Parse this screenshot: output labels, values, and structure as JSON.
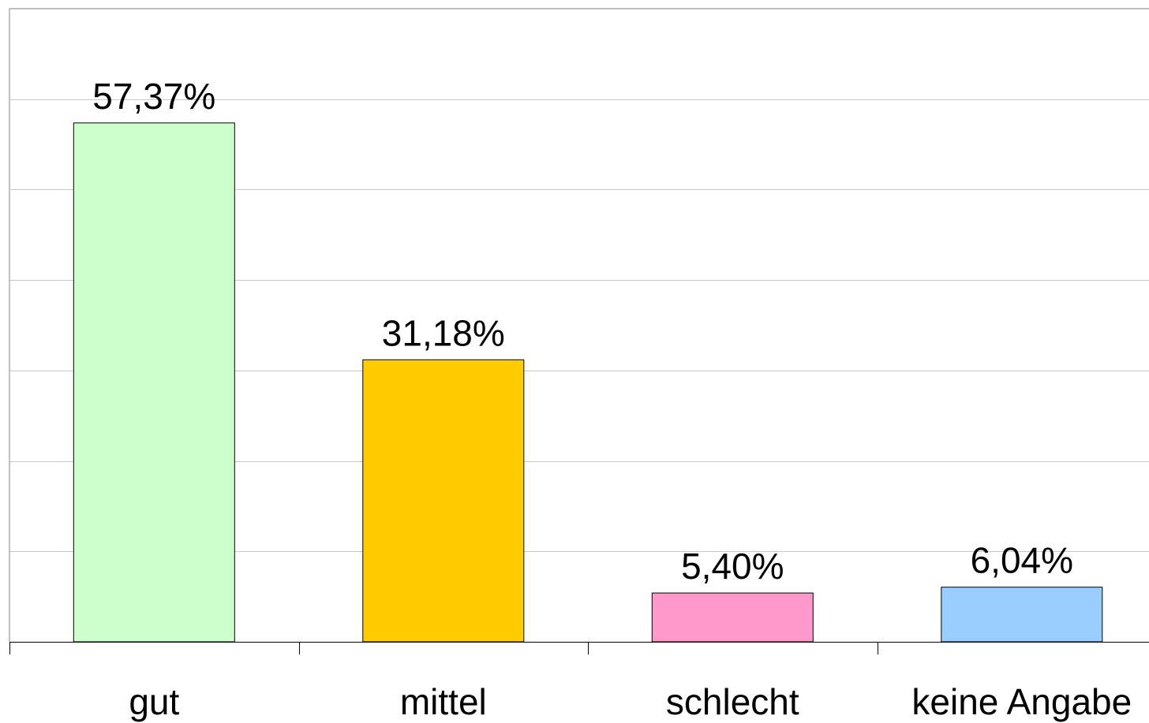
{
  "chart_data": {
    "type": "bar",
    "categories": [
      "gut",
      "mittel",
      "schlecht",
      "keine Angabe"
    ],
    "values": [
      57.37,
      31.18,
      5.4,
      6.04
    ],
    "data_labels": [
      "57,37%",
      "31,18%",
      "5,40%",
      "6,04%"
    ],
    "colors": [
      "#CCFFCC",
      "#FFCC00",
      "#FF99CC",
      "#99CCFF"
    ],
    "title": "",
    "xlabel": "",
    "ylabel": "",
    "ylim": [
      0,
      70
    ],
    "grid": true,
    "legend": "none"
  }
}
